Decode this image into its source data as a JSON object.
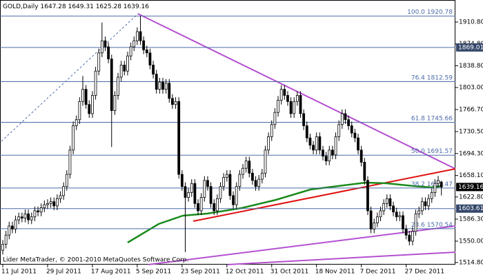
{
  "chart_data": {
    "type": "candlestick",
    "title": "GOLD,Daily",
    "footer": "Lider MetaTrader, © 2001-2010 MetaQuotes Software Corp.",
    "categories": [
      "11 Jul 2011",
      null,
      null,
      null,
      null,
      null,
      null,
      null,
      null,
      null,
      null,
      null,
      null,
      null,
      "29 Jul 2011",
      null,
      null,
      null,
      null,
      null,
      null,
      null,
      null,
      null,
      null,
      null,
      null,
      null,
      "17 Aug 2011",
      null,
      null,
      null,
      null,
      null,
      null,
      null,
      null,
      null,
      null,
      null,
      null,
      null,
      "5 Sep 2011",
      null,
      null,
      null,
      null,
      null,
      null,
      null,
      null,
      null,
      null,
      null,
      null,
      null,
      "23 Sep 2011",
      null,
      null,
      null,
      null,
      null,
      null,
      null,
      null,
      null,
      null,
      null,
      null,
      null,
      "12 Oct 2011",
      null,
      null,
      null,
      null,
      null,
      null,
      null,
      null,
      null,
      null,
      null,
      null,
      null,
      "31 Oct 2011",
      null,
      null,
      null,
      null,
      null,
      null,
      null,
      null,
      null,
      null,
      null,
      null,
      null,
      "18 Nov 2011",
      null,
      null,
      null,
      null,
      null,
      null,
      null,
      null,
      null,
      null,
      null,
      null,
      null,
      "7 Dec 2011",
      null,
      null,
      null,
      null,
      null,
      null,
      null,
      null,
      null,
      null,
      null,
      null,
      null,
      "27 Dec 2011",
      null,
      null,
      null,
      null,
      null,
      null,
      null,
      null,
      null,
      null,
      null
    ],
    "ohlc": [
      [
        1535,
        1552,
        1528,
        1545
      ],
      [
        1545,
        1567,
        1538,
        1560
      ],
      [
        1560,
        1582,
        1553,
        1575
      ],
      [
        1575,
        1582,
        1563,
        1570
      ],
      [
        1570,
        1592,
        1563,
        1585
      ],
      [
        1585,
        1597,
        1578,
        1590
      ],
      [
        1590,
        1597,
        1581,
        1588
      ],
      [
        1588,
        1602,
        1581,
        1595
      ],
      [
        1595,
        1602,
        1578,
        1585
      ],
      [
        1585,
        1597,
        1578,
        1590
      ],
      [
        1590,
        1607,
        1583,
        1600
      ],
      [
        1600,
        1607,
        1591,
        1598
      ],
      [
        1598,
        1612,
        1591,
        1605
      ],
      [
        1605,
        1617,
        1598,
        1610
      ],
      [
        1610,
        1619,
        1603,
        1612
      ],
      [
        1612,
        1622,
        1605,
        1615
      ],
      [
        1615,
        1622,
        1601,
        1608
      ],
      [
        1608,
        1627,
        1601,
        1620
      ],
      [
        1620,
        1632,
        1613,
        1625
      ],
      [
        1625,
        1647,
        1618,
        1640
      ],
      [
        1640,
        1667,
        1633,
        1660
      ],
      [
        1660,
        1707,
        1653,
        1700
      ],
      [
        1700,
        1747,
        1693,
        1740
      ],
      [
        1740,
        1757,
        1733,
        1750
      ],
      [
        1750,
        1787,
        1743,
        1780
      ],
      [
        1780,
        1822,
        1773,
        1800
      ],
      [
        1800,
        1807,
        1768,
        1775
      ],
      [
        1775,
        1782,
        1753,
        1760
      ],
      [
        1760,
        1797,
        1753,
        1790
      ],
      [
        1790,
        1837,
        1783,
        1830
      ],
      [
        1830,
        1867,
        1823,
        1860
      ],
      [
        1860,
        1910,
        1853,
        1880
      ],
      [
        1880,
        1887,
        1863,
        1870
      ],
      [
        1870,
        1877,
        1843,
        1850
      ],
      [
        1850,
        1857,
        1705,
        1765
      ],
      [
        1765,
        1797,
        1758,
        1790
      ],
      [
        1790,
        1827,
        1783,
        1820
      ],
      [
        1820,
        1847,
        1813,
        1840
      ],
      [
        1840,
        1847,
        1823,
        1830
      ],
      [
        1830,
        1862,
        1823,
        1855
      ],
      [
        1855,
        1877,
        1848,
        1870
      ],
      [
        1870,
        1887,
        1863,
        1880
      ],
      [
        1880,
        1902,
        1873,
        1895
      ],
      [
        1895,
        1920.78,
        1873,
        1880
      ],
      [
        1880,
        1887,
        1858,
        1865
      ],
      [
        1865,
        1872,
        1853,
        1860
      ],
      [
        1860,
        1867,
        1833,
        1840
      ],
      [
        1840,
        1847,
        1818,
        1825
      ],
      [
        1825,
        1832,
        1793,
        1800
      ],
      [
        1800,
        1819,
        1793,
        1812
      ],
      [
        1812,
        1819,
        1793,
        1800
      ],
      [
        1800,
        1817,
        1793,
        1810
      ],
      [
        1810,
        1817,
        1778,
        1785
      ],
      [
        1785,
        1792,
        1768,
        1775
      ],
      [
        1775,
        1787,
        1768,
        1780
      ],
      [
        1780,
        1787,
        1653,
        1660
      ],
      [
        1660,
        1667,
        1633,
        1640
      ],
      [
        1640,
        1647,
        1532,
        1622
      ],
      [
        1622,
        1637,
        1615,
        1630
      ],
      [
        1630,
        1652,
        1623,
        1645
      ],
      [
        1645,
        1652,
        1605,
        1612
      ],
      [
        1612,
        1619,
        1593,
        1600
      ],
      [
        1600,
        1629,
        1593,
        1622
      ],
      [
        1622,
        1657,
        1615,
        1650
      ],
      [
        1650,
        1657,
        1633,
        1640
      ],
      [
        1640,
        1647,
        1605,
        1612
      ],
      [
        1612,
        1619,
        1593,
        1600
      ],
      [
        1600,
        1627,
        1593,
        1620
      ],
      [
        1620,
        1647,
        1613,
        1640
      ],
      [
        1640,
        1662,
        1633,
        1655
      ],
      [
        1655,
        1667,
        1648,
        1660
      ],
      [
        1660,
        1667,
        1618,
        1625
      ],
      [
        1625,
        1632,
        1603,
        1610
      ],
      [
        1610,
        1647,
        1603,
        1640
      ],
      [
        1640,
        1667,
        1633,
        1660
      ],
      [
        1660,
        1677,
        1653,
        1670
      ],
      [
        1670,
        1689,
        1663,
        1682
      ],
      [
        1682,
        1689,
        1655,
        1662
      ],
      [
        1662,
        1669,
        1643,
        1650
      ],
      [
        1650,
        1657,
        1633,
        1640
      ],
      [
        1640,
        1659,
        1633,
        1652
      ],
      [
        1652,
        1669,
        1645,
        1662
      ],
      [
        1662,
        1707,
        1655,
        1700
      ],
      [
        1700,
        1729,
        1693,
        1722
      ],
      [
        1722,
        1749,
        1715,
        1742
      ],
      [
        1742,
        1769,
        1735,
        1762
      ],
      [
        1762,
        1789,
        1755,
        1782
      ],
      [
        1782,
        1807,
        1775,
        1800
      ],
      [
        1800,
        1807,
        1783,
        1790
      ],
      [
        1790,
        1797,
        1773,
        1780
      ],
      [
        1780,
        1787,
        1753,
        1760
      ],
      [
        1760,
        1787,
        1753,
        1780
      ],
      [
        1780,
        1797,
        1773,
        1790
      ],
      [
        1790,
        1797,
        1753,
        1760
      ],
      [
        1760,
        1767,
        1733,
        1740
      ],
      [
        1740,
        1747,
        1713,
        1720
      ],
      [
        1720,
        1727,
        1701,
        1708
      ],
      [
        1708,
        1715,
        1693,
        1700
      ],
      [
        1700,
        1729,
        1693,
        1722
      ],
      [
        1722,
        1729,
        1693,
        1700
      ],
      [
        1700,
        1707,
        1683,
        1690
      ],
      [
        1690,
        1697,
        1675,
        1682
      ],
      [
        1682,
        1707,
        1675,
        1700
      ],
      [
        1700,
        1707,
        1685,
        1692
      ],
      [
        1692,
        1729,
        1685,
        1722
      ],
      [
        1722,
        1749,
        1715,
        1742
      ],
      [
        1742,
        1767,
        1735,
        1760
      ],
      [
        1760,
        1767,
        1743,
        1750
      ],
      [
        1750,
        1757,
        1733,
        1740
      ],
      [
        1740,
        1747,
        1721,
        1728
      ],
      [
        1728,
        1735,
        1713,
        1720
      ],
      [
        1720,
        1727,
        1693,
        1700
      ],
      [
        1700,
        1707,
        1673,
        1680
      ],
      [
        1680,
        1687,
        1643,
        1650
      ],
      [
        1650,
        1657,
        1593,
        1600
      ],
      [
        1600,
        1607,
        1563,
        1570
      ],
      [
        1570,
        1587,
        1563,
        1580
      ],
      [
        1580,
        1597,
        1573,
        1590
      ],
      [
        1590,
        1607,
        1583,
        1600
      ],
      [
        1600,
        1619,
        1593,
        1612
      ],
      [
        1612,
        1627,
        1605,
        1620
      ],
      [
        1620,
        1627,
        1601,
        1608
      ],
      [
        1608,
        1615,
        1591,
        1598
      ],
      [
        1598,
        1605,
        1583,
        1590
      ],
      [
        1590,
        1599,
        1583,
        1592
      ],
      [
        1592,
        1599,
        1563,
        1570
      ],
      [
        1570,
        1577,
        1553,
        1560
      ],
      [
        1560,
        1567,
        1543,
        1550
      ],
      [
        1550,
        1573,
        1543,
        1566
      ],
      [
        1566,
        1602,
        1559,
        1595
      ],
      [
        1595,
        1607,
        1588,
        1600
      ],
      [
        1600,
        1622,
        1593,
        1615
      ],
      [
        1615,
        1622,
        1601,
        1608
      ],
      [
        1608,
        1627,
        1601,
        1620
      ],
      [
        1620,
        1637,
        1613,
        1630
      ],
      [
        1630,
        1652,
        1623,
        1645
      ],
      [
        1645,
        1657.5,
        1638,
        1650
      ],
      [
        1647.28,
        1649.31,
        1625.28,
        1639.16
      ]
    ],
    "ylim": [
      1511.4,
      1947.1
    ],
    "yticks": [
      {
        "value": 1910.8,
        "label": "1910.80"
      },
      {
        "value": 1874.8,
        "label": "1874.80"
      },
      {
        "value": 1838.8,
        "label": "1838.80"
      },
      {
        "value": 1803,
        "label": "1803.00"
      },
      {
        "value": 1766.7,
        "label": "1766.70"
      },
      {
        "value": 1730.5,
        "label": "1730.50"
      },
      {
        "value": 1694.3,
        "label": "1694.30"
      },
      {
        "value": 1658.1,
        "label": "1658.10"
      },
      {
        "value": 1622.8,
        "label": "1622.80"
      },
      {
        "value": 1586.3,
        "label": "1586.30"
      },
      {
        "value": 1550,
        "label": "1550.00"
      },
      {
        "value": 1514.8,
        "label": "1514.80"
      }
    ],
    "levels": [
      {
        "label": "100.0",
        "value": 1920.78
      },
      {
        "label": "76.4",
        "value": 1812.59
      },
      {
        "label": "61.8",
        "value": 1745.66
      },
      {
        "label": "50.0",
        "value": 1691.57
      },
      {
        "label": "38.2",
        "value": 1637.47
      },
      {
        "label": "23.6",
        "value": 1570.54
      }
    ],
    "price_lines": [
      1869.01,
      1603.61
    ],
    "bull_color": "#ffffff",
    "bear_color": "#000000",
    "level_color": "#4a6aa8"
  }
}
